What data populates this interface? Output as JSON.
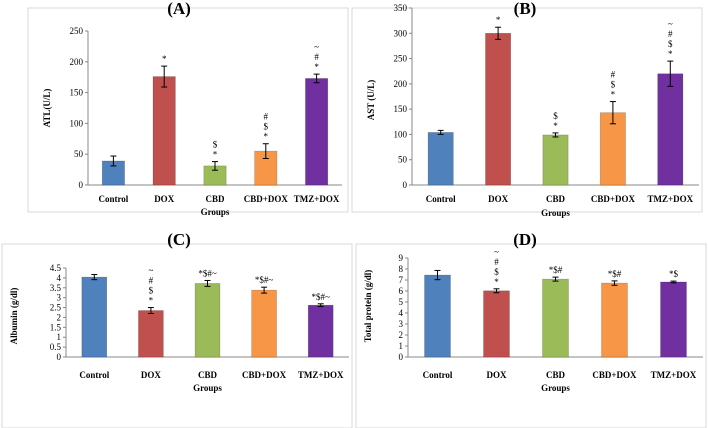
{
  "colors": {
    "Control": "#4f81bd",
    "DOX": "#c0504d",
    "CBD": "#9bbb59",
    "CBD+DOX": "#f79646",
    "TMZ+DOX": "#7030a0"
  },
  "chart_data": [
    {
      "panel": "(A)",
      "type": "bar",
      "title": "(A)",
      "xlabel": "Groups",
      "ylabel": "ATL(U/L)",
      "ylim": [
        0,
        250
      ],
      "yticks": [
        0,
        50,
        100,
        150,
        200,
        250
      ],
      "categories": [
        "Control",
        "DOX",
        "CBD",
        "CBD+DOX",
        "TMZ+DOX"
      ],
      "values": [
        39,
        176,
        31,
        55,
        173
      ],
      "errors": [
        8,
        17,
        7,
        12,
        7
      ],
      "annotations": [
        [],
        [
          "*"
        ],
        [
          "$",
          "*"
        ],
        [
          "#",
          "$",
          "*"
        ],
        [
          "~",
          "#",
          "*"
        ]
      ]
    },
    {
      "panel": "(B)",
      "type": "bar",
      "title": "(B)",
      "xlabel": "Groups",
      "ylabel": "AST (U/L)",
      "ylim": [
        0,
        350
      ],
      "yticks": [
        0,
        50,
        100,
        150,
        200,
        250,
        300,
        350
      ],
      "categories": [
        "Control",
        "DOX",
        "CBD",
        "CBD+DOX",
        "TMZ+DOX"
      ],
      "values": [
        104,
        300,
        99,
        143,
        220
      ],
      "errors": [
        4,
        12,
        4,
        22,
        25
      ],
      "annotations": [
        [],
        [
          "*"
        ],
        [
          "$",
          "*"
        ],
        [
          "#",
          "$",
          "*"
        ],
        [
          "~",
          "#",
          "$",
          "*"
        ]
      ]
    },
    {
      "panel": "(C)",
      "type": "bar",
      "title": "(C)",
      "xlabel": "Groups",
      "ylabel": "Albumin (g/dl)",
      "ylim": [
        0,
        4.5
      ],
      "yticks": [
        "0",
        "0.5",
        "1",
        "1.5",
        "2",
        "2.5",
        "3",
        "3.5",
        "4",
        "4.5"
      ],
      "categories": [
        "Control",
        "DOX",
        "CBD",
        "CBD+DOX",
        "TMZ+DOX"
      ],
      "values": [
        4.04,
        2.35,
        3.72,
        3.38,
        2.62
      ],
      "errors": [
        0.13,
        0.15,
        0.15,
        0.15,
        0.07
      ],
      "annotations": [
        [],
        [
          "~",
          "#",
          "$",
          "*"
        ],
        [
          "*$#~"
        ],
        [
          "*$#~"
        ],
        [
          "*$#~"
        ]
      ]
    },
    {
      "panel": "(D)",
      "type": "bar",
      "title": "(D)",
      "xlabel": "Groups",
      "ylabel": "Total protein (g/dl)",
      "ylim": [
        0,
        9
      ],
      "yticks": [
        "0",
        "1",
        "2",
        "3",
        "4",
        "5",
        "6",
        "7",
        "8",
        "9"
      ],
      "categories": [
        "Control",
        "DOX",
        "CBD",
        "CBD+DOX",
        "TMZ+DOX"
      ],
      "values": [
        7.45,
        6.02,
        7.08,
        6.72,
        6.82
      ],
      "errors": [
        0.42,
        0.18,
        0.18,
        0.2,
        0.08
      ],
      "annotations": [
        [],
        [
          "~",
          "#",
          "$",
          "*"
        ],
        [
          "*$#"
        ],
        [
          "*$#"
        ],
        [
          "*$"
        ]
      ]
    }
  ]
}
